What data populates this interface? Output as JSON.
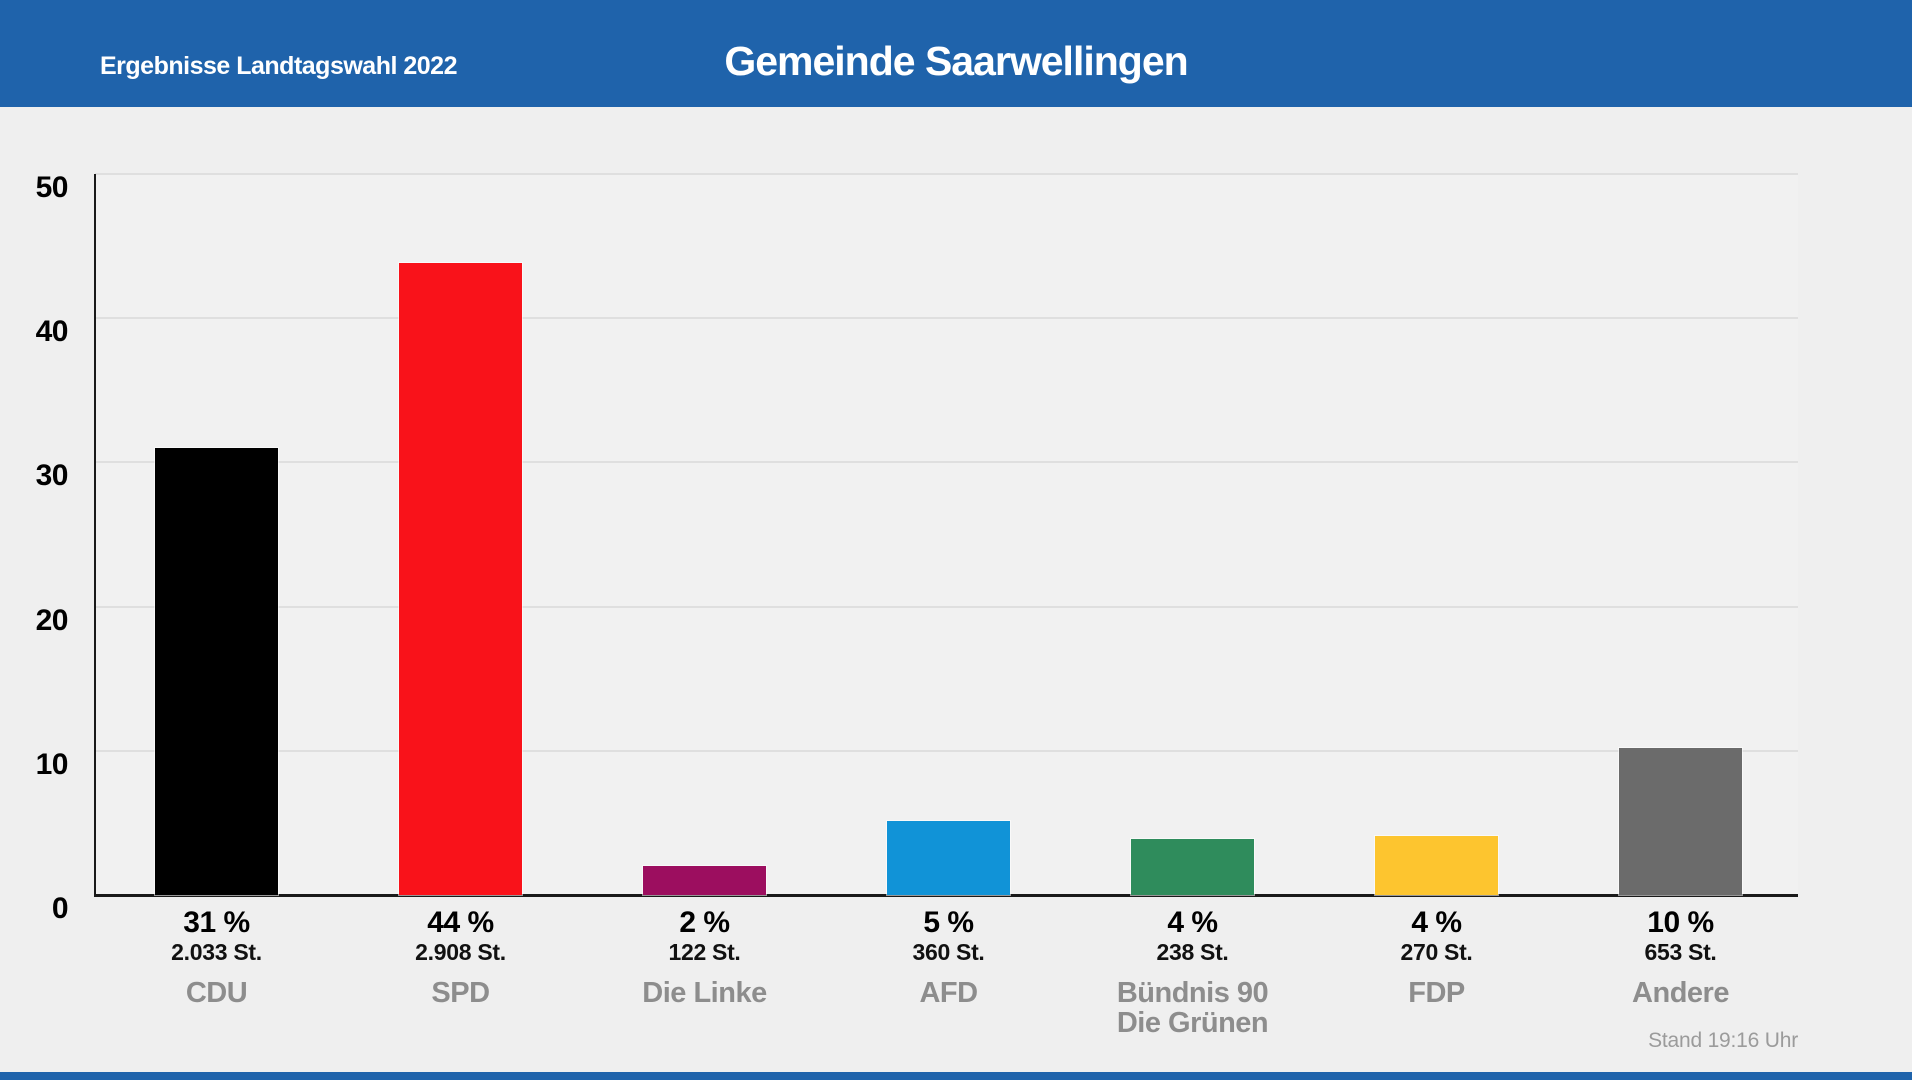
{
  "header": {
    "subtitle": "Ergebnisse Landtagswahl 2022",
    "title": "Gemeinde Saarwellingen",
    "background": "#1f63ab",
    "text_color": "#ffffff"
  },
  "footer": {
    "stand": "Stand 19:16 Uhr",
    "strip_color": "#1f63ab"
  },
  "chart_data": {
    "type": "bar",
    "title": "Gemeinde Saarwellingen",
    "subtitle": "Ergebnisse Landtagswahl 2022",
    "xlabel": "",
    "ylabel": "",
    "ylim": [
      0,
      50
    ],
    "yticks": [
      0,
      10,
      20,
      30,
      40,
      50
    ],
    "grid": true,
    "background": "#efefef",
    "categories": [
      "CDU",
      "SPD",
      "Die Linke",
      "AFD",
      "Bündnis 90\nDie Grünen",
      "FDP",
      "Andere"
    ],
    "series": [
      {
        "party": "CDU",
        "percent": 31.0,
        "percent_label": "31 %",
        "votes": 2033,
        "votes_label": "2.033 St.",
        "color": "#000000"
      },
      {
        "party": "SPD",
        "percent": 43.8,
        "percent_label": "44 %",
        "votes": 2908,
        "votes_label": "2.908 St.",
        "color": "#f9121a"
      },
      {
        "party": "Die Linke",
        "percent": 2.0,
        "percent_label": "2 %",
        "votes": 122,
        "votes_label": "122 St.",
        "color": "#9c0e5f"
      },
      {
        "party": "AFD",
        "percent": 5.1,
        "percent_label": "5 %",
        "votes": 360,
        "votes_label": "360 St.",
        "color": "#1193d7"
      },
      {
        "party": "Bündnis 90\nDie Grünen",
        "percent": 3.9,
        "percent_label": "4 %",
        "votes": 238,
        "votes_label": "238 St.",
        "color": "#2f8c5c"
      },
      {
        "party": "FDP",
        "percent": 4.1,
        "percent_label": "4 %",
        "votes": 270,
        "votes_label": "270 St.",
        "color": "#fdc52f"
      },
      {
        "party": "Andere",
        "percent": 10.2,
        "percent_label": "10 %",
        "votes": 653,
        "votes_label": "653 St.",
        "color": "#6b6b6b"
      }
    ]
  }
}
